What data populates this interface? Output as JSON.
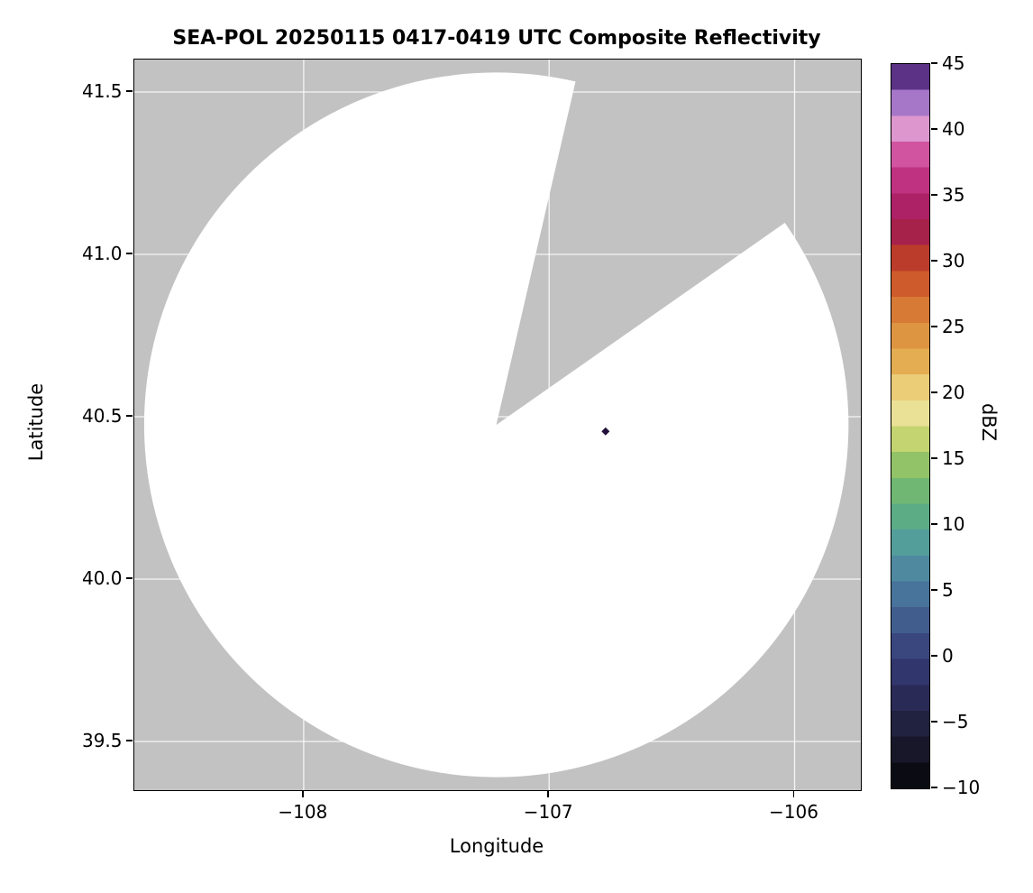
{
  "chart_data": {
    "type": "heatmap",
    "title": "SEA-POL 20250115 0417-0419 UTC Composite Reflectivity",
    "xlabel": "Longitude",
    "ylabel": "Latitude",
    "xlim": [
      -108.69,
      -105.73
    ],
    "ylim": [
      39.35,
      41.6
    ],
    "grid": true,
    "grid_color": "#ffffff",
    "background_color": "#c2c2c2",
    "x_ticks": [
      {
        "value": -108,
        "label": "−108"
      },
      {
        "value": -107,
        "label": "−107"
      },
      {
        "value": -106,
        "label": "−106"
      }
    ],
    "y_ticks": [
      {
        "value": 41.5,
        "label": "41.5"
      },
      {
        "value": 41.0,
        "label": "41.0"
      },
      {
        "value": 40.5,
        "label": "40.5"
      },
      {
        "value": 40.0,
        "label": "40.0"
      },
      {
        "value": 39.5,
        "label": "39.5"
      }
    ],
    "coverage": {
      "description": "Radar coverage disk shown white (clear air / no echo); gray outside coverage and in blocked sector",
      "center_lon": -107.215,
      "center_lat": 40.475,
      "radius_lon_deg": 1.435,
      "radius_lat_deg": 1.085,
      "fill_color": "#ffffff",
      "blocked_sector_azimuth_deg": {
        "from": 13,
        "to": 55
      }
    },
    "echoes": [
      {
        "lon": -106.77,
        "lat": 40.455,
        "dbz": 45
      }
    ],
    "colorbar": {
      "label": "dBZ",
      "min": -10,
      "max": 45,
      "bands": 28,
      "ticks": [
        {
          "value": 45,
          "label": "45"
        },
        {
          "value": 40,
          "label": "40"
        },
        {
          "value": 35,
          "label": "35"
        },
        {
          "value": 30,
          "label": "30"
        },
        {
          "value": 25,
          "label": "25"
        },
        {
          "value": 20,
          "label": "20"
        },
        {
          "value": 15,
          "label": "15"
        },
        {
          "value": 10,
          "label": "10"
        },
        {
          "value": 5,
          "label": "5"
        },
        {
          "value": 0,
          "label": "0"
        },
        {
          "value": -5,
          "label": "−5"
        },
        {
          "value": -10,
          "label": "−10"
        }
      ],
      "stops": [
        {
          "value": -10,
          "color": "#050508"
        },
        {
          "value": -8,
          "color": "#12121f"
        },
        {
          "value": -6,
          "color": "#1c1c35"
        },
        {
          "value": -4,
          "color": "#26264d"
        },
        {
          "value": -2,
          "color": "#2e3063"
        },
        {
          "value": 0,
          "color": "#363f78"
        },
        {
          "value": 2,
          "color": "#3e5488"
        },
        {
          "value": 4,
          "color": "#466b96"
        },
        {
          "value": 6,
          "color": "#4c82a0"
        },
        {
          "value": 8,
          "color": "#5197a0"
        },
        {
          "value": 10,
          "color": "#57a98d"
        },
        {
          "value": 12,
          "color": "#67b478"
        },
        {
          "value": 14,
          "color": "#85bf6a"
        },
        {
          "value": 15,
          "color": "#9cc766"
        },
        {
          "value": 16,
          "color": "#b6cf68"
        },
        {
          "value": 17,
          "color": "#d0d877"
        },
        {
          "value": 18,
          "color": "#e6df8d"
        },
        {
          "value": 19,
          "color": "#efe3a2"
        },
        {
          "value": 20,
          "color": "#edd584"
        },
        {
          "value": 21,
          "color": "#e9c468"
        },
        {
          "value": 22,
          "color": "#e5b254"
        },
        {
          "value": 24,
          "color": "#df9a43"
        },
        {
          "value": 26,
          "color": "#d97f37"
        },
        {
          "value": 28,
          "color": "#d0602c"
        },
        {
          "value": 30,
          "color": "#c04127"
        },
        {
          "value": 31,
          "color": "#b12f35"
        },
        {
          "value": 32,
          "color": "#a52248"
        },
        {
          "value": 34,
          "color": "#ab1f63"
        },
        {
          "value": 36,
          "color": "#bd2f7f"
        },
        {
          "value": 38,
          "color": "#cf4f9d"
        },
        {
          "value": 39,
          "color": "#dc74b6"
        },
        {
          "value": 40,
          "color": "#df97cd"
        },
        {
          "value": 41,
          "color": "#c997d8"
        },
        {
          "value": 42,
          "color": "#a878c9"
        },
        {
          "value": 43,
          "color": "#8757b1"
        },
        {
          "value": 44,
          "color": "#5c3387"
        },
        {
          "value": 45,
          "color": "#23103a"
        }
      ]
    }
  }
}
